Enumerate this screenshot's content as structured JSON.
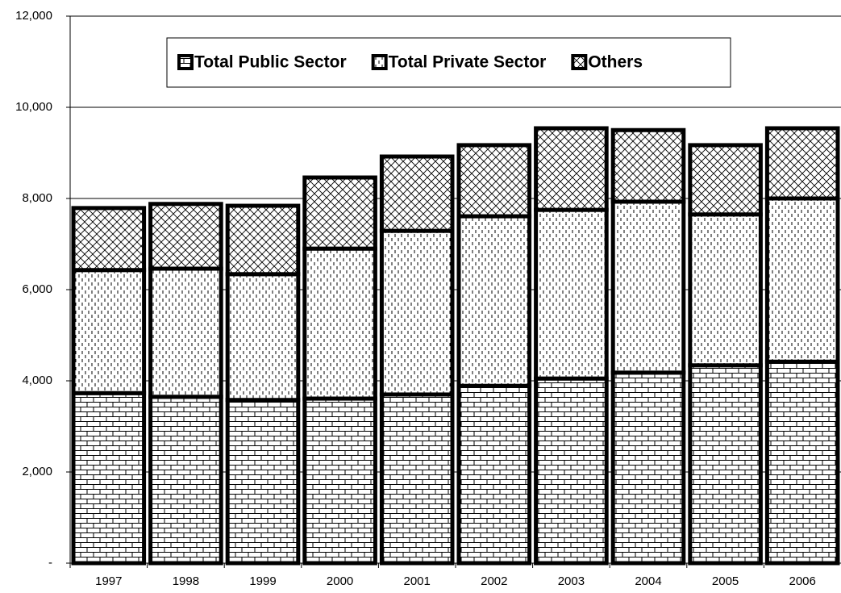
{
  "chart_data": {
    "type": "stacked-bar",
    "categories": [
      "1997",
      "1998",
      "1999",
      "2000",
      "2001",
      "2002",
      "2003",
      "2004",
      "2005",
      "2006"
    ],
    "series": [
      {
        "name": "Total Public Sector",
        "color": "#000000",
        "pattern": "brick",
        "values": [
          3730,
          3650,
          3580,
          3610,
          3700,
          3890,
          4050,
          4180,
          4340,
          4420
        ]
      },
      {
        "name": "Total Private Sector",
        "color": "#000000",
        "pattern": "dashes",
        "values": [
          2700,
          2810,
          2760,
          3290,
          3590,
          3720,
          3700,
          3750,
          3310,
          3580
        ]
      },
      {
        "name": "Others",
        "color": "#000000",
        "pattern": "crosshatch",
        "values": [
          1360,
          1420,
          1500,
          1560,
          1630,
          1560,
          1790,
          1570,
          1520,
          1540
        ]
      }
    ],
    "ylim": [
      0,
      12000
    ],
    "yticks": [
      {
        "value": 0,
        "label": "-"
      },
      {
        "value": 2000,
        "label": "2,000"
      },
      {
        "value": 4000,
        "label": "4,000"
      },
      {
        "value": 6000,
        "label": "6,000"
      },
      {
        "value": 8000,
        "label": "8,000"
      },
      {
        "value": 10000,
        "label": "10,000"
      },
      {
        "value": 12000,
        "label": "12,000"
      }
    ],
    "grid": true
  }
}
